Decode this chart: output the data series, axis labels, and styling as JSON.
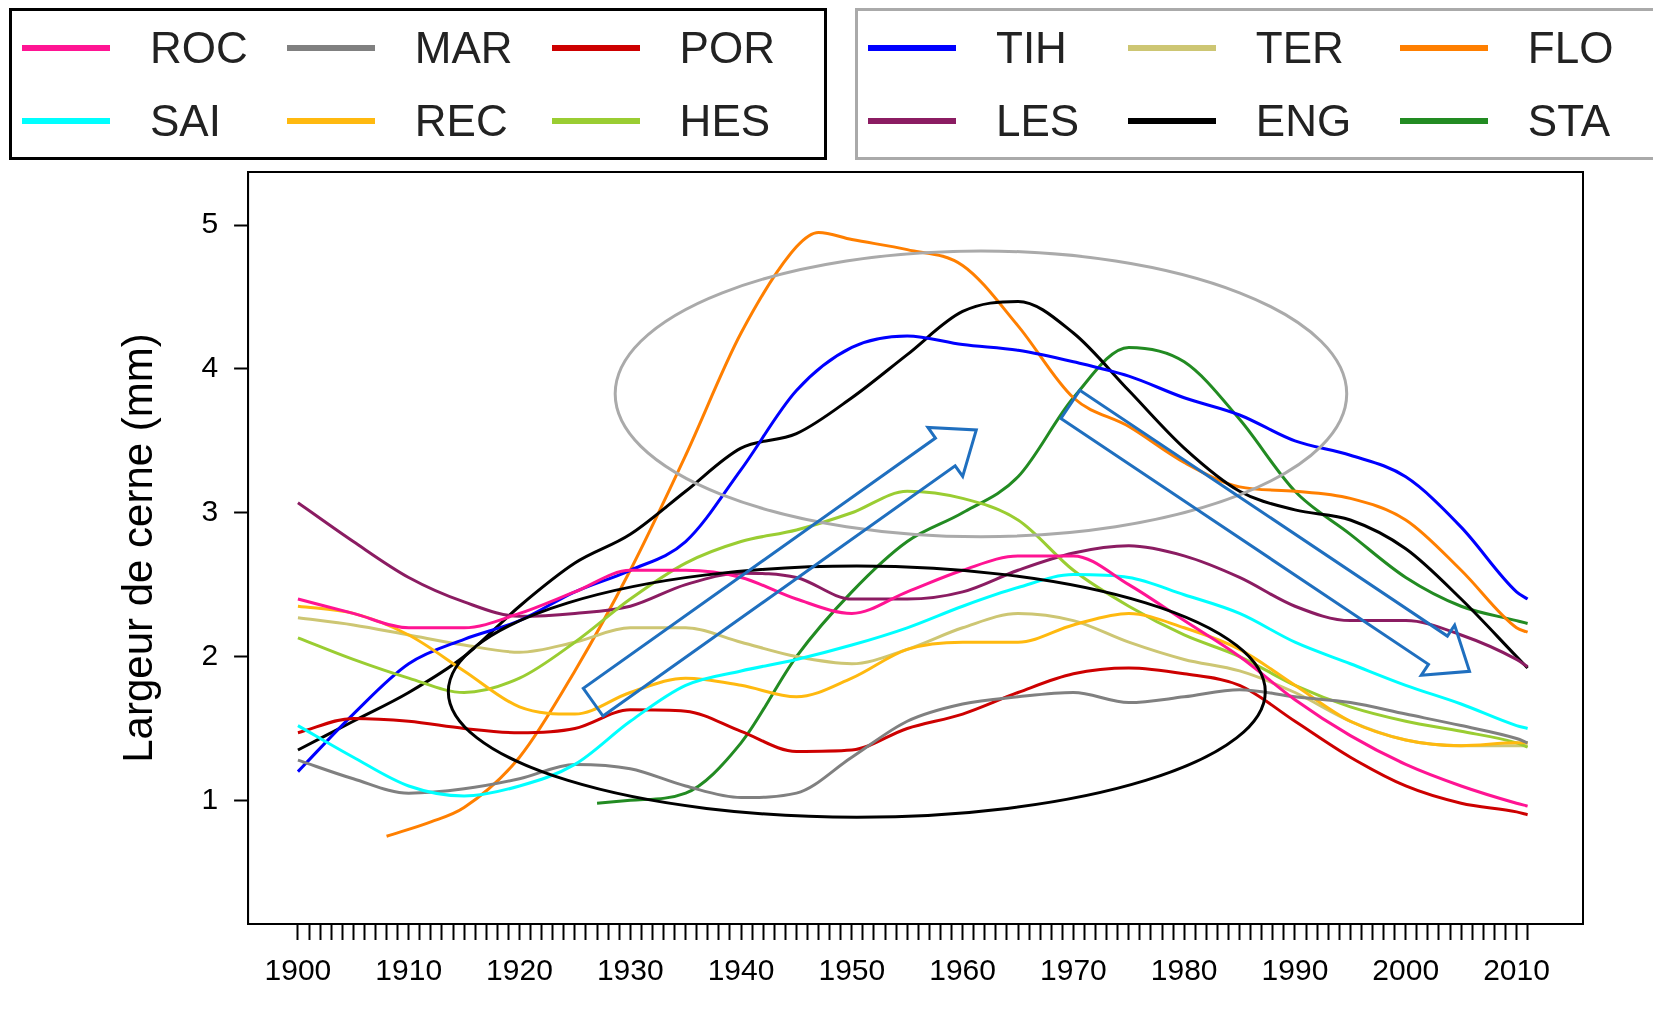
{
  "chart_data": {
    "type": "line",
    "ylabel": "Largeur de cerne (mm)",
    "legend": "top",
    "marker": "none",
    "line_style": "solid",
    "grid": false,
    "x": [
      1900,
      1905,
      1910,
      1915,
      1920,
      1925,
      1930,
      1935,
      1940,
      1945,
      1950,
      1955,
      1960,
      1965,
      1970,
      1975,
      1980,
      1985,
      1990,
      1995,
      2000,
      2005,
      2010,
      2011
    ],
    "xlim": [
      1895.5,
      2016
    ],
    "ylim": [
      0.14,
      5.37
    ],
    "yticks": [
      1,
      2,
      3,
      4,
      5
    ],
    "xticks": [
      1900,
      {
        "value": 1901,
        "label": null
      },
      {
        "value": 1902,
        "label": null
      },
      {
        "value": 1903,
        "label": null
      },
      {
        "value": 1904,
        "label": null
      },
      {
        "value": 1905,
        "label": null
      },
      {
        "value": 1906,
        "label": null
      },
      {
        "value": 1907,
        "label": null
      },
      {
        "value": 1908,
        "label": null
      },
      {
        "value": 1909,
        "label": null
      },
      1910,
      {
        "value": 1911,
        "label": null
      },
      {
        "value": 1912,
        "label": null
      },
      {
        "value": 1913,
        "label": null
      },
      {
        "value": 1914,
        "label": null
      },
      {
        "value": 1915,
        "label": null
      },
      {
        "value": 1916,
        "label": null
      },
      {
        "value": 1917,
        "label": null
      },
      {
        "value": 1918,
        "label": null
      },
      {
        "value": 1919,
        "label": null
      },
      1920,
      {
        "value": 1921,
        "label": null
      },
      {
        "value": 1922,
        "label": null
      },
      {
        "value": 1923,
        "label": null
      },
      {
        "value": 1924,
        "label": null
      },
      {
        "value": 1925,
        "label": null
      },
      {
        "value": 1926,
        "label": null
      },
      {
        "value": 1927,
        "label": null
      },
      {
        "value": 1928,
        "label": null
      },
      {
        "value": 1929,
        "label": null
      },
      1930,
      {
        "value": 1931,
        "label": null
      },
      {
        "value": 1932,
        "label": null
      },
      {
        "value": 1933,
        "label": null
      },
      {
        "value": 1934,
        "label": null
      },
      {
        "value": 1935,
        "label": null
      },
      {
        "value": 1936,
        "label": null
      },
      {
        "value": 1937,
        "label": null
      },
      {
        "value": 1938,
        "label": null
      },
      {
        "value": 1939,
        "label": null
      },
      1940,
      {
        "value": 1941,
        "label": null
      },
      {
        "value": 1942,
        "label": null
      },
      {
        "value": 1943,
        "label": null
      },
      {
        "value": 1944,
        "label": null
      },
      {
        "value": 1945,
        "label": null
      },
      {
        "value": 1946,
        "label": null
      },
      {
        "value": 1947,
        "label": null
      },
      {
        "value": 1948,
        "label": null
      },
      {
        "value": 1949,
        "label": null
      },
      1950,
      {
        "value": 1951,
        "label": null
      },
      {
        "value": 1952,
        "label": null
      },
      {
        "value": 1953,
        "label": null
      },
      {
        "value": 1954,
        "label": null
      },
      {
        "value": 1955,
        "label": null
      },
      {
        "value": 1956,
        "label": null
      },
      {
        "value": 1957,
        "label": null
      },
      {
        "value": 1958,
        "label": null
      },
      {
        "value": 1959,
        "label": null
      },
      1960,
      {
        "value": 1961,
        "label": null
      },
      {
        "value": 1962,
        "label": null
      },
      {
        "value": 1963,
        "label": null
      },
      {
        "value": 1964,
        "label": null
      },
      {
        "value": 1965,
        "label": null
      },
      {
        "value": 1966,
        "label": null
      },
      {
        "value": 1967,
        "label": null
      },
      {
        "value": 1968,
        "label": null
      },
      {
        "value": 1969,
        "label": null
      },
      1970,
      {
        "value": 1971,
        "label": null
      },
      {
        "value": 1972,
        "label": null
      },
      {
        "value": 1973,
        "label": null
      },
      {
        "value": 1974,
        "label": null
      },
      {
        "value": 1975,
        "label": null
      },
      {
        "value": 1976,
        "label": null
      },
      {
        "value": 1977,
        "label": null
      },
      {
        "value": 1978,
        "label": null
      },
      {
        "value": 1979,
        "label": null
      },
      1980,
      {
        "value": 1981,
        "label": null
      },
      {
        "value": 1982,
        "label": null
      },
      {
        "value": 1983,
        "label": null
      },
      {
        "value": 1984,
        "label": null
      },
      {
        "value": 1985,
        "label": null
      },
      {
        "value": 1986,
        "label": null
      },
      {
        "value": 1987,
        "label": null
      },
      {
        "value": 1988,
        "label": null
      },
      {
        "value": 1989,
        "label": null
      },
      1990,
      {
        "value": 1991,
        "label": null
      },
      {
        "value": 1992,
        "label": null
      },
      {
        "value": 1993,
        "label": null
      },
      {
        "value": 1994,
        "label": null
      },
      {
        "value": 1995,
        "label": null
      },
      {
        "value": 1996,
        "label": null
      },
      {
        "value": 1997,
        "label": null
      },
      {
        "value": 1998,
        "label": null
      },
      {
        "value": 1999,
        "label": null
      },
      2000,
      {
        "value": 2001,
        "label": null
      },
      {
        "value": 2002,
        "label": null
      },
      {
        "value": 2003,
        "label": null
      },
      {
        "value": 2004,
        "label": null
      },
      {
        "value": 2005,
        "label": null
      },
      {
        "value": 2006,
        "label": null
      },
      {
        "value": 2007,
        "label": null
      },
      {
        "value": 2008,
        "label": null
      },
      {
        "value": 2009,
        "label": null
      },
      2010,
      {
        "value": 2011,
        "label": null
      }
    ],
    "series": [
      {
        "name": "ROC",
        "color": "#ff1493",
        "values": [
          2.4,
          2.3,
          2.2,
          2.2,
          2.3,
          2.45,
          2.6,
          2.6,
          2.55,
          2.4,
          2.3,
          2.45,
          2.6,
          2.7,
          2.7,
          2.5,
          2.25,
          2.0,
          1.7,
          1.45,
          1.25,
          1.1,
          0.98,
          0.96
        ]
      },
      {
        "name": "SAI",
        "color": "#00ffff",
        "values": [
          1.52,
          1.3,
          1.1,
          1.03,
          1.1,
          1.25,
          1.55,
          1.8,
          1.9,
          1.98,
          2.08,
          2.2,
          2.35,
          2.48,
          2.57,
          2.55,
          2.43,
          2.3,
          2.1,
          1.95,
          1.8,
          1.67,
          1.52,
          1.5
        ]
      },
      {
        "name": "MAR",
        "color": "#808080",
        "values": [
          1.28,
          1.15,
          1.05,
          1.08,
          1.15,
          1.25,
          1.22,
          1.1,
          1.02,
          1.05,
          1.3,
          1.55,
          1.67,
          1.72,
          1.75,
          1.68,
          1.72,
          1.77,
          1.72,
          1.68,
          1.6,
          1.52,
          1.43,
          1.4
        ]
      },
      {
        "name": "REC",
        "color": "#ffb90f",
        "values": [
          2.35,
          2.3,
          2.15,
          1.9,
          1.65,
          1.6,
          1.75,
          1.85,
          1.8,
          1.72,
          1.85,
          2.05,
          2.1,
          2.1,
          2.22,
          2.3,
          2.2,
          2.05,
          1.8,
          1.55,
          1.42,
          1.38,
          1.4,
          1.4
        ]
      },
      {
        "name": "POR",
        "color": "#cd0000",
        "values": [
          1.47,
          1.57,
          1.55,
          1.5,
          1.47,
          1.5,
          1.63,
          1.62,
          1.48,
          1.34,
          1.35,
          1.5,
          1.6,
          1.75,
          1.88,
          1.92,
          1.88,
          1.8,
          1.55,
          1.3,
          1.1,
          0.98,
          0.92,
          0.9
        ]
      },
      {
        "name": "HES",
        "color": "#9acd32",
        "values": [
          2.13,
          1.98,
          1.85,
          1.75,
          1.85,
          2.1,
          2.4,
          2.65,
          2.8,
          2.88,
          3.0,
          3.15,
          3.1,
          2.95,
          2.6,
          2.35,
          2.15,
          2.0,
          1.8,
          1.65,
          1.55,
          1.48,
          1.4,
          1.37
        ]
      },
      {
        "name": "TIH",
        "color": "#0000ff",
        "values": [
          1.2,
          1.6,
          1.95,
          2.12,
          2.25,
          2.45,
          2.6,
          2.8,
          3.3,
          3.85,
          4.15,
          4.23,
          4.17,
          4.13,
          4.05,
          3.95,
          3.8,
          3.68,
          3.5,
          3.4,
          3.25,
          2.9,
          2.45,
          2.4
        ]
      },
      {
        "name": "LES",
        "color": "#8b1c62",
        "values": [
          3.07,
          2.8,
          2.55,
          2.38,
          2.28,
          2.3,
          2.35,
          2.5,
          2.58,
          2.55,
          2.4,
          2.4,
          2.45,
          2.6,
          2.72,
          2.77,
          2.7,
          2.55,
          2.35,
          2.25,
          2.25,
          2.15,
          1.98,
          1.93
        ]
      },
      {
        "name": "TER",
        "color": "#cdc673",
        "values": [
          2.27,
          2.22,
          2.15,
          2.08,
          2.03,
          2.1,
          2.2,
          2.2,
          2.1,
          2.0,
          1.95,
          2.05,
          2.2,
          2.3,
          2.25,
          2.1,
          1.98,
          1.9,
          1.75,
          1.55,
          1.42,
          1.38,
          1.38,
          1.38
        ]
      },
      {
        "name": "ENG",
        "color": "#000000",
        "values": [
          1.35,
          1.55,
          1.75,
          2.0,
          2.35,
          2.65,
          2.85,
          3.15,
          3.45,
          3.55,
          3.8,
          4.1,
          4.4,
          4.47,
          4.25,
          3.85,
          3.45,
          3.15,
          3.02,
          2.95,
          2.75,
          2.4,
          2.0,
          1.92
        ]
      },
      {
        "name": "FLO",
        "color": "#ff7f00",
        "x": [
          1908,
          1912,
          1915,
          1920,
          1925,
          1930,
          1935,
          1940,
          1945,
          1947,
          1950,
          1955,
          1960,
          1965,
          1970,
          1975,
          1980,
          1985,
          1990,
          1995,
          2000,
          2005,
          2010,
          2011
        ],
        "values": [
          0.75,
          0.85,
          0.95,
          1.3,
          1.9,
          2.6,
          3.4,
          4.25,
          4.85,
          4.95,
          4.9,
          4.83,
          4.72,
          4.3,
          3.8,
          3.6,
          3.35,
          3.18,
          3.15,
          3.1,
          2.95,
          2.6,
          2.2,
          2.17
        ]
      },
      {
        "name": "STA",
        "color": "#228b22",
        "x": [
          1927,
          1930,
          1935,
          1940,
          1945,
          1950,
          1955,
          1960,
          1965,
          1970,
          1975,
          1980,
          1985,
          1990,
          1995,
          2000,
          2005,
          2010,
          2011
        ],
        "values": [
          0.98,
          1.0,
          1.05,
          1.4,
          2.0,
          2.45,
          2.8,
          3.0,
          3.25,
          3.8,
          4.15,
          4.05,
          3.65,
          3.15,
          2.85,
          2.55,
          2.35,
          2.25,
          2.23
        ]
      }
    ]
  }
}
